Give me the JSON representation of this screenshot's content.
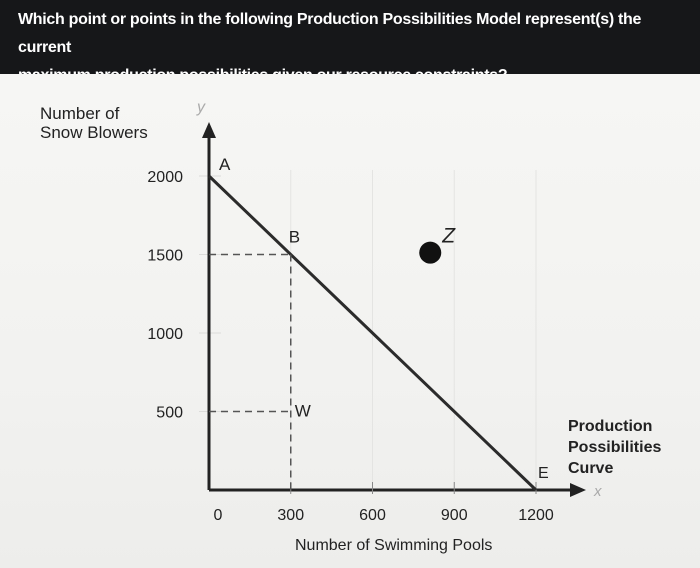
{
  "question": {
    "line1": "Which point or points in the following Production Possibilities Model represent(s) the current",
    "line2": "maximum production possibilities given our resource constraints?"
  },
  "chart_data": {
    "type": "line",
    "ylabel_line1": "Number of",
    "ylabel_line2": "Snow Blowers",
    "xlabel": "Number of Swimming Pools",
    "y_axis_letter": "y",
    "x_axis_letter": "x",
    "origin_label": "0",
    "xlim": [
      0,
      1200
    ],
    "ylim": [
      0,
      2000
    ],
    "x_ticks": [
      300,
      600,
      900,
      1200
    ],
    "x_tick_labels": [
      "300",
      "600",
      "900",
      "1200"
    ],
    "y_ticks": [
      500,
      1000,
      1500,
      2000
    ],
    "y_tick_labels": [
      "500",
      "1000",
      "1500",
      "2000"
    ],
    "series": [
      {
        "x": [
          0,
          1200
        ],
        "y": [
          2000,
          0
        ]
      }
    ],
    "points": [
      {
        "label": "A",
        "x": 0,
        "y": 2000
      },
      {
        "label": "B",
        "x": 300,
        "y": 1500
      },
      {
        "label": "W",
        "x": 300,
        "y": 500
      },
      {
        "label": "Z",
        "x": 900,
        "y": 1550
      },
      {
        "label": "E",
        "x": 1200,
        "y": 0
      }
    ],
    "filled_point": "Z",
    "curve_label": [
      "Production",
      "Possibilities",
      "Curve"
    ]
  }
}
